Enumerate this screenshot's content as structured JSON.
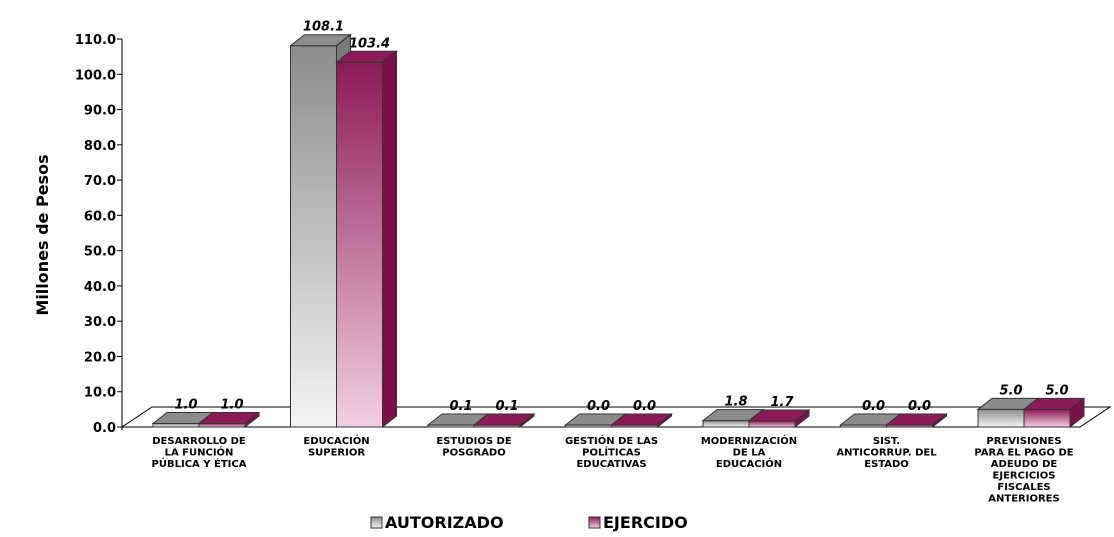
{
  "chart_data": {
    "type": "bar",
    "ylabel": "Millones de Pesos",
    "ylim": [
      0,
      110
    ],
    "yticks": [
      "0.0",
      "10.0",
      "20.0",
      "30.0",
      "40.0",
      "50.0",
      "60.0",
      "70.0",
      "80.0",
      "90.0",
      "100.0",
      "110.0"
    ],
    "categories": [
      [
        "DESARROLLO DE",
        "LA FUNCIÓN",
        "PÚBLICA Y ÉTICA"
      ],
      [
        "EDUCACIÓN",
        "SUPERIOR"
      ],
      [
        "ESTUDIOS DE",
        "POSGRADO"
      ],
      [
        "GESTIÓN DE LAS",
        "POLÍTICAS",
        "EDUCATIVAS"
      ],
      [
        "MODERNIZACIÓN",
        "DE LA",
        "EDUCACIÓN"
      ],
      [
        "SIST.",
        "ANTICORRUP. DEL",
        "ESTADO"
      ],
      [
        "PREVISIONES",
        "PARA EL PAGO DE",
        "ADEUDO DE",
        "EJERCICIOS",
        "FISCALES",
        "ANTERIORES"
      ]
    ],
    "series": [
      {
        "name": "AUTORIZADO",
        "values": [
          1.0,
          108.1,
          0.1,
          0.0,
          1.8,
          0.0,
          5.0
        ],
        "labels": [
          "1.0",
          "108.1",
          "0.1",
          "0.0",
          "1.8",
          "0.0",
          "5.0"
        ],
        "color_top": "#8c8c8c",
        "color_bottom": "#f2f2f2",
        "color_side": "#7a7a7a"
      },
      {
        "name": "EJERCIDO",
        "values": [
          1.0,
          103.4,
          0.1,
          0.0,
          1.7,
          0.0,
          5.0
        ],
        "labels": [
          "1.0",
          "103.4",
          "0.1",
          "0.0",
          "1.7",
          "0.0",
          "5.0"
        ],
        "color_top": "#8b1a55",
        "color_bottom": "#f0c8e0",
        "color_side": "#7a1248"
      }
    ],
    "legend_position": "bottom",
    "grid": false
  }
}
